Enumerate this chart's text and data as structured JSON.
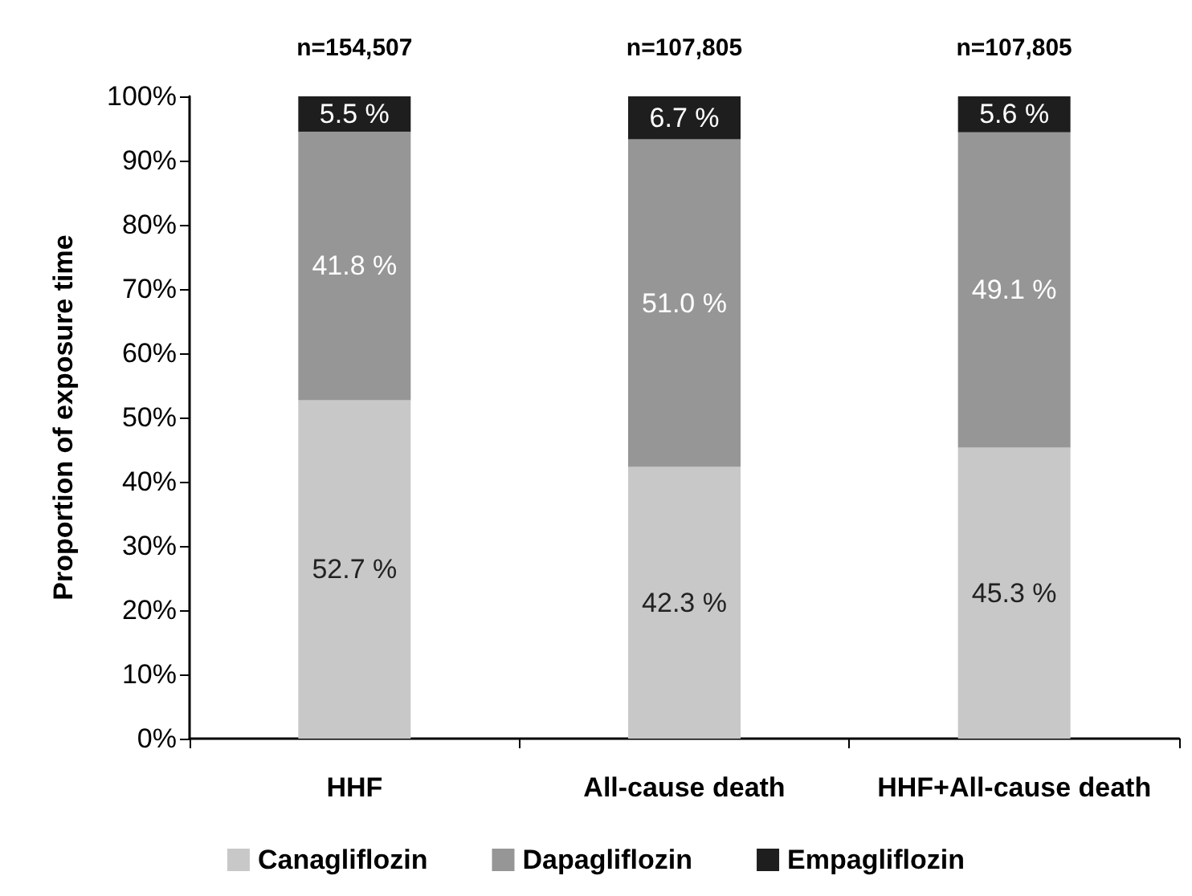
{
  "chart_data": {
    "type": "bar",
    "stacked": true,
    "ylabel": "Proportion of exposure time",
    "categories": [
      "HHF",
      "All-cause death",
      "HHF+All-cause death"
    ],
    "series": [
      {
        "name": "Canagliflozin",
        "color": "#c8c8c8",
        "values": [
          52.7,
          42.3,
          45.3
        ],
        "value_labels": [
          "52.7 %",
          "42.3 %",
          "45.3 %"
        ]
      },
      {
        "name": "Dapagliflozin",
        "color": "#969696",
        "values": [
          41.8,
          51.0,
          49.1
        ],
        "value_labels": [
          "41.8 %",
          "51.0 %",
          "49.1 %"
        ]
      },
      {
        "name": "Empagliflozin",
        "color": "#1e1e1e",
        "values": [
          5.5,
          6.7,
          5.6
        ],
        "value_labels": [
          "5.5 %",
          "6.7 %",
          "5.6 %"
        ]
      }
    ],
    "annotations": [
      "n=154,507",
      "n=107,805",
      "n=107,805"
    ],
    "ylim": [
      0,
      100
    ],
    "yticks": [
      {
        "value": 0,
        "label": "0%"
      },
      {
        "value": 10,
        "label": "10%"
      },
      {
        "value": 20,
        "label": "20%"
      },
      {
        "value": 30,
        "label": "30%"
      },
      {
        "value": 40,
        "label": "40%"
      },
      {
        "value": 50,
        "label": "50%"
      },
      {
        "value": 60,
        "label": "60%"
      },
      {
        "value": 70,
        "label": "70%"
      },
      {
        "value": 80,
        "label": "80%"
      },
      {
        "value": 90,
        "label": "90%"
      },
      {
        "value": 100,
        "label": "100%"
      }
    ],
    "grid": false,
    "legend": "bottom"
  }
}
